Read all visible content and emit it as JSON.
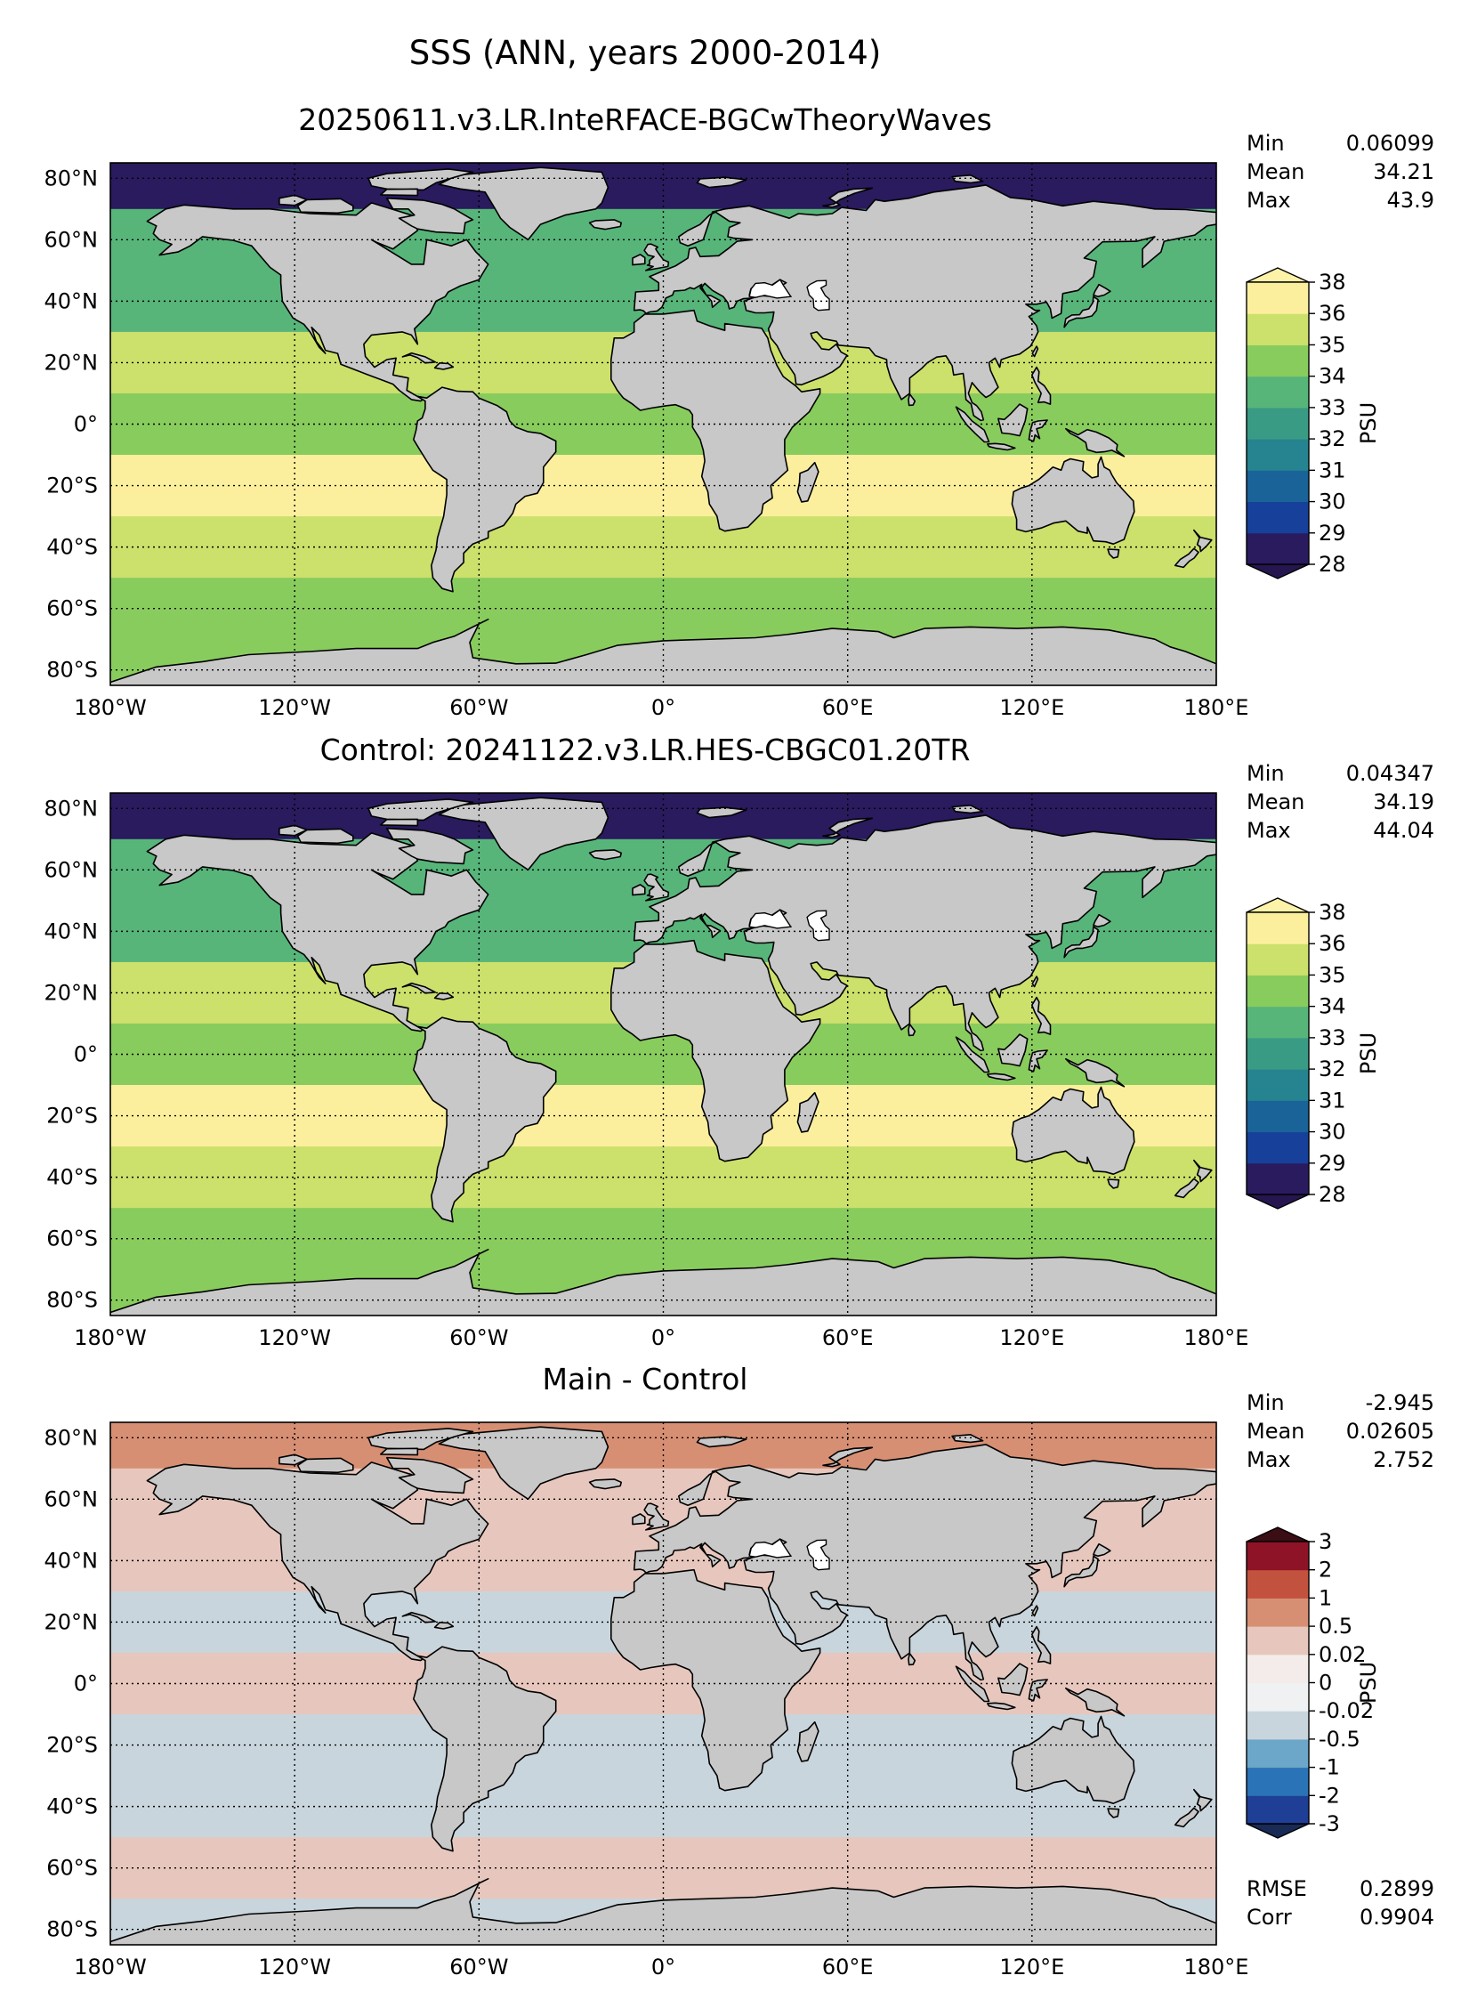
{
  "figure": {
    "title": "SSS (ANN, years 2000-2014)"
  },
  "chart_data": [
    {
      "type": "heatmap",
      "projection": "PlateCarree",
      "variable": "SSS",
      "title": "20250611.v3.LR.InteRFACE-BGCwTheoryWaves",
      "stats": [
        {
          "label": "Min",
          "value": "0.06099"
        },
        {
          "label": "Mean",
          "value": "34.21"
        },
        {
          "label": "Max",
          "value": "43.9"
        }
      ],
      "colorbar": {
        "label": "PSU",
        "levels": [
          28,
          29,
          30,
          31,
          32,
          33,
          34,
          35,
          36,
          38
        ],
        "tick_labels": [
          "28",
          "29",
          "30",
          "31",
          "32",
          "33",
          "34",
          "35",
          "36",
          "38"
        ],
        "colors": [
          "#2a1a5e",
          "#17409a",
          "#1a6399",
          "#25848f",
          "#3a9b85",
          "#57b57a",
          "#89cc5e",
          "#cce06c",
          "#fbef9e"
        ],
        "extend": "both",
        "under_color": "#261650",
        "over_color": "#fdf3a8"
      },
      "xlim": [
        -180,
        180
      ],
      "ylim": [
        -85,
        85
      ],
      "xticks": [
        "180°W",
        "120°W",
        "60°W",
        "0°",
        "60°E",
        "120°E",
        "180°E"
      ],
      "yticks": [
        "80°N",
        "60°N",
        "40°N",
        "20°N",
        "0°",
        "20°S",
        "40°S",
        "60°S",
        "80°S"
      ],
      "grid": true,
      "values_by_latitude": [
        {
          "lat": "80N",
          "value": 28
        },
        {
          "lat": "60N",
          "value": 33.5
        },
        {
          "lat": "40N",
          "value": 33
        },
        {
          "lat": "20N",
          "value": 35.5
        },
        {
          "lat": "0",
          "value": 34.5
        },
        {
          "lat": "20S",
          "value": 36
        },
        {
          "lat": "40S",
          "value": 35
        },
        {
          "lat": "60S",
          "value": 34
        },
        {
          "lat": "80S",
          "value": 34
        }
      ]
    },
    {
      "type": "heatmap",
      "projection": "PlateCarree",
      "variable": "SSS",
      "title": "Control: 20241122.v3.LR.HES-CBGC01.20TR",
      "stats": [
        {
          "label": "Min",
          "value": "0.04347"
        },
        {
          "label": "Mean",
          "value": "34.19"
        },
        {
          "label": "Max",
          "value": "44.04"
        }
      ],
      "colorbar": {
        "label": "PSU",
        "levels": [
          28,
          29,
          30,
          31,
          32,
          33,
          34,
          35,
          36,
          38
        ],
        "tick_labels": [
          "28",
          "29",
          "30",
          "31",
          "32",
          "33",
          "34",
          "35",
          "36",
          "38"
        ],
        "colors": [
          "#2a1a5e",
          "#17409a",
          "#1a6399",
          "#25848f",
          "#3a9b85",
          "#57b57a",
          "#89cc5e",
          "#cce06c",
          "#fbef9e"
        ],
        "extend": "both",
        "under_color": "#261650",
        "over_color": "#fdf3a8"
      },
      "xlim": [
        -180,
        180
      ],
      "ylim": [
        -85,
        85
      ],
      "xticks": [
        "180°W",
        "120°W",
        "60°W",
        "0°",
        "60°E",
        "120°E",
        "180°E"
      ],
      "yticks": [
        "80°N",
        "60°N",
        "40°N",
        "20°N",
        "0°",
        "20°S",
        "40°S",
        "60°S",
        "80°S"
      ],
      "grid": true,
      "values_by_latitude": [
        {
          "lat": "80N",
          "value": 28
        },
        {
          "lat": "60N",
          "value": 33.5
        },
        {
          "lat": "40N",
          "value": 33
        },
        {
          "lat": "20N",
          "value": 35.5
        },
        {
          "lat": "0",
          "value": 34.5
        },
        {
          "lat": "20S",
          "value": 36
        },
        {
          "lat": "40S",
          "value": 35
        },
        {
          "lat": "60S",
          "value": 34
        },
        {
          "lat": "80S",
          "value": 34
        }
      ]
    },
    {
      "type": "heatmap",
      "projection": "PlateCarree",
      "variable": "SSS difference",
      "title": "Main - Control",
      "stats": [
        {
          "label": "Min",
          "value": "-2.945"
        },
        {
          "label": "Mean",
          "value": "0.02605"
        },
        {
          "label": "Max",
          "value": "2.752"
        }
      ],
      "extra_stats": [
        {
          "label": "RMSE",
          "value": "0.2899"
        },
        {
          "label": "Corr",
          "value": "0.9904"
        }
      ],
      "colorbar": {
        "label": "PSU",
        "levels": [
          -3,
          -2,
          -1,
          -0.5,
          -0.02,
          0,
          0.02,
          0.5,
          1,
          2,
          3
        ],
        "tick_labels": [
          "-3",
          "-2",
          "-1",
          "-0.5",
          "-0.02",
          "0",
          "0.02",
          "0.5",
          "1",
          "2",
          "3"
        ],
        "colors": [
          "#1f3e96",
          "#2a73b6",
          "#6ca6c8",
          "#c9d5dc",
          "#eff1f3",
          "#f3ecea",
          "#e7c7bd",
          "#d78f74",
          "#c2523e",
          "#8f1327"
        ],
        "extend": "both",
        "under_color": "#182a55",
        "over_color": "#3b0d15"
      },
      "xlim": [
        -180,
        180
      ],
      "ylim": [
        -85,
        85
      ],
      "xticks": [
        "180°W",
        "120°W",
        "60°W",
        "0°",
        "60°E",
        "120°E",
        "180°E"
      ],
      "yticks": [
        "80°N",
        "60°N",
        "40°N",
        "20°N",
        "0°",
        "20°S",
        "40°S",
        "60°S",
        "80°S"
      ],
      "grid": true,
      "values_by_latitude": [
        {
          "lat": "80N",
          "value": 0.5
        },
        {
          "lat": "60N",
          "value": 0.1
        },
        {
          "lat": "40N",
          "value": 0.3
        },
        {
          "lat": "20N",
          "value": -0.1
        },
        {
          "lat": "0",
          "value": 0.1
        },
        {
          "lat": "20S",
          "value": -0.1
        },
        {
          "lat": "40S",
          "value": -0.3
        },
        {
          "lat": "60S",
          "value": 0.1
        },
        {
          "lat": "80S",
          "value": -0.1
        }
      ]
    }
  ]
}
